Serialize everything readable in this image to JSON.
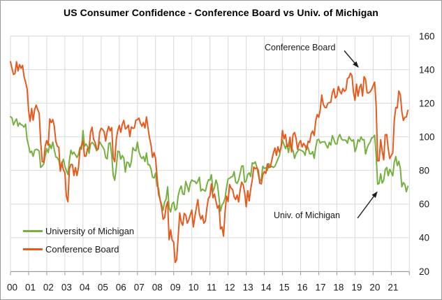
{
  "title": "US Consumer Confidence - Conference Board vs Univ. of Michigan",
  "legend": {
    "items": [
      {
        "label": "University of Michigan",
        "color": "#76B041"
      },
      {
        "label": "Conference Board",
        "color": "#E65A1E"
      }
    ]
  },
  "annotations": [
    {
      "text": "Conference Board"
    },
    {
      "text": "Univ. of Michigan"
    }
  ],
  "colors": {
    "gridline": "#d9d9d9",
    "axis": "#9a9a9a",
    "tick_label": "#1a1a1a",
    "annotation": "#1a1a1a",
    "frame_border": "#9b9b9b"
  },
  "chart_data": {
    "type": "line",
    "title": "US Consumer Confidence - Conference Board vs Univ. of Michigan",
    "xlabel": "",
    "ylabel": "",
    "frequency": "monthly",
    "x_range": [
      "2000-01",
      "2021-12"
    ],
    "x_tick_labels": [
      "00",
      "01",
      "02",
      "03",
      "04",
      "05",
      "06",
      "07",
      "08",
      "09",
      "10",
      "11",
      "12",
      "13",
      "14",
      "15",
      "16",
      "17",
      "18",
      "19",
      "20",
      "21"
    ],
    "ylim": [
      20,
      160
    ],
    "y_ticks": [
      20,
      40,
      60,
      80,
      100,
      120,
      140,
      160
    ],
    "y_axis_side": "right",
    "grid": true,
    "legend_position": "inside-bottom-left",
    "series": [
      {
        "name": "University of Michigan",
        "color": "#76B041",
        "values": [
          112.0,
          111.3,
          107.1,
          109.2,
          110.7,
          106.4,
          108.3,
          107.3,
          106.8,
          105.8,
          107.6,
          98.4,
          94.7,
          90.6,
          91.5,
          88.4,
          92.0,
          92.6,
          92.4,
          91.5,
          81.8,
          82.7,
          83.9,
          88.8,
          93.0,
          90.7,
          95.7,
          93.0,
          96.9,
          92.4,
          88.1,
          87.6,
          86.1,
          80.6,
          84.2,
          86.7,
          82.4,
          79.9,
          77.6,
          86.0,
          92.1,
          89.7,
          90.9,
          89.3,
          87.7,
          89.6,
          93.7,
          92.6,
          103.8,
          94.4,
          95.8,
          94.2,
          90.2,
          95.6,
          96.7,
          95.9,
          94.2,
          91.7,
          92.8,
          97.1,
          95.5,
          94.1,
          92.6,
          87.7,
          86.9,
          96.0,
          96.5,
          89.1,
          76.9,
          74.2,
          81.6,
          91.5,
          91.2,
          86.7,
          88.9,
          87.4,
          79.1,
          84.9,
          84.7,
          82.0,
          85.4,
          93.6,
          92.1,
          91.7,
          96.9,
          91.3,
          88.4,
          87.1,
          88.3,
          85.3,
          90.4,
          83.4,
          83.4,
          80.9,
          76.1,
          75.5,
          78.4,
          70.8,
          69.5,
          62.6,
          59.8,
          56.4,
          61.2,
          63.0,
          70.3,
          57.6,
          55.3,
          60.1,
          61.2,
          56.3,
          57.3,
          65.1,
          68.7,
          70.8,
          66.0,
          65.7,
          73.5,
          70.6,
          67.4,
          72.5,
          74.4,
          73.6,
          73.6,
          72.2,
          73.6,
          76.0,
          67.8,
          68.9,
          68.2,
          67.7,
          71.6,
          74.5,
          74.2,
          77.5,
          67.5,
          69.8,
          74.3,
          71.5,
          63.7,
          55.8,
          59.5,
          60.8,
          63.7,
          69.9,
          75.0,
          75.3,
          76.2,
          76.4,
          79.3,
          73.2,
          72.3,
          74.3,
          78.3,
          82.6,
          82.7,
          72.9,
          73.8,
          77.6,
          78.6,
          76.4,
          84.5,
          84.1,
          85.1,
          82.1,
          77.5,
          73.2,
          75.1,
          82.5,
          81.2,
          81.6,
          80.0,
          84.1,
          81.9,
          82.5,
          81.8,
          82.5,
          84.6,
          86.9,
          88.8,
          93.6,
          98.1,
          95.4,
          93.0,
          95.9,
          90.7,
          96.1,
          93.1,
          91.9,
          87.2,
          90.0,
          91.3,
          92.6,
          92.0,
          91.7,
          91.0,
          89.0,
          94.7,
          93.5,
          90.0,
          89.8,
          91.2,
          87.2,
          93.8,
          98.2,
          98.5,
          96.3,
          96.9,
          97.0,
          97.1,
          95.0,
          93.4,
          96.8,
          95.1,
          100.7,
          98.5,
          95.9,
          95.7,
          99.7,
          101.4,
          98.8,
          98.0,
          98.2,
          97.9,
          96.2,
          100.1,
          98.6,
          97.5,
          98.3,
          91.2,
          93.8,
          98.4,
          97.2,
          100.0,
          98.2,
          98.4,
          89.8,
          93.2,
          95.5,
          96.8,
          99.3,
          99.8,
          101.0,
          89.1,
          71.8,
          72.3,
          78.1,
          72.5,
          74.1,
          80.4,
          81.8,
          76.9,
          80.7,
          79.0,
          76.8,
          84.9,
          88.3,
          82.9,
          85.5,
          81.2,
          70.3,
          72.8,
          71.7,
          67.4,
          70.6
        ]
      },
      {
        "name": "Conference Board",
        "color": "#E65A1E",
        "values": [
          144.7,
          140.8,
          137.1,
          137.7,
          144.7,
          139.2,
          143.0,
          140.8,
          142.5,
          135.8,
          132.6,
          128.6,
          115.7,
          109.2,
          116.9,
          109.9,
          116.1,
          118.9,
          116.3,
          114.0,
          97.0,
          85.3,
          84.9,
          94.6,
          97.8,
          95.0,
          110.7,
          108.5,
          110.3,
          106.3,
          97.4,
          94.5,
          93.7,
          79.6,
          84.9,
          80.3,
          78.8,
          64.8,
          61.4,
          81.0,
          83.6,
          83.5,
          77.0,
          81.7,
          77.0,
          81.7,
          92.5,
          94.8,
          97.7,
          88.5,
          88.5,
          93.0,
          93.1,
          102.8,
          105.7,
          98.7,
          96.7,
          92.9,
          92.6,
          102.7,
          105.1,
          104.4,
          103.0,
          97.5,
          103.1,
          106.2,
          103.6,
          105.5,
          87.5,
          85.2,
          98.3,
          103.8,
          106.8,
          102.7,
          107.5,
          109.8,
          104.7,
          105.4,
          107.0,
          100.2,
          105.9,
          105.1,
          105.3,
          110.0,
          110.2,
          111.2,
          108.2,
          106.3,
          108.5,
          105.3,
          111.9,
          105.6,
          99.5,
          95.2,
          87.8,
          90.6,
          87.3,
          76.4,
          65.9,
          62.8,
          58.1,
          51.0,
          51.9,
          58.5,
          61.4,
          38.8,
          44.7,
          38.6,
          37.4,
          25.3,
          26.9,
          40.8,
          54.8,
          49.3,
          47.4,
          54.5,
          53.4,
          48.7,
          50.6,
          53.6,
          56.5,
          46.4,
          52.3,
          57.7,
          62.7,
          54.3,
          51.0,
          53.2,
          48.6,
          49.9,
          57.8,
          63.4,
          64.8,
          72.0,
          63.8,
          66.0,
          61.7,
          57.6,
          59.2,
          45.2,
          46.4,
          40.9,
          55.2,
          64.8,
          61.5,
          71.6,
          69.5,
          68.7,
          64.4,
          62.7,
          65.4,
          61.3,
          68.4,
          73.1,
          71.5,
          66.7,
          58.4,
          68.0,
          61.9,
          69.0,
          74.3,
          82.1,
          81.0,
          81.8,
          80.2,
          72.4,
          72.0,
          77.5,
          79.4,
          78.3,
          83.9,
          81.7,
          82.2,
          86.4,
          90.3,
          93.4,
          89.0,
          94.1,
          91.0,
          93.1,
          103.8,
          98.8,
          101.4,
          94.3,
          94.6,
          99.8,
          91.0,
          101.3,
          102.6,
          99.1,
          92.6,
          96.3,
          97.8,
          94.0,
          96.1,
          94.7,
          92.4,
          97.4,
          96.7,
          101.8,
          103.5,
          100.8,
          109.4,
          113.3,
          111.6,
          116.1,
          124.9,
          119.4,
          117.6,
          117.3,
          120.0,
          120.4,
          120.6,
          126.2,
          128.6,
          123.1,
          124.3,
          130.0,
          127.0,
          125.6,
          128.8,
          127.1,
          127.9,
          134.7,
          135.3,
          137.9,
          136.4,
          126.6,
          121.7,
          131.4,
          124.2,
          129.2,
          131.3,
          124.3,
          135.8,
          134.2,
          126.3,
          126.1,
          126.8,
          128.2,
          130.4,
          132.6,
          118.8,
          85.7,
          85.9,
          98.3,
          91.7,
          86.3,
          101.3,
          101.4,
          92.9,
          87.1,
          88.9,
          90.4,
          109.7,
          117.5,
          117.2,
          127.3,
          125.1,
          115.2,
          109.8,
          111.6,
          111.9,
          115.8
        ]
      }
    ]
  }
}
